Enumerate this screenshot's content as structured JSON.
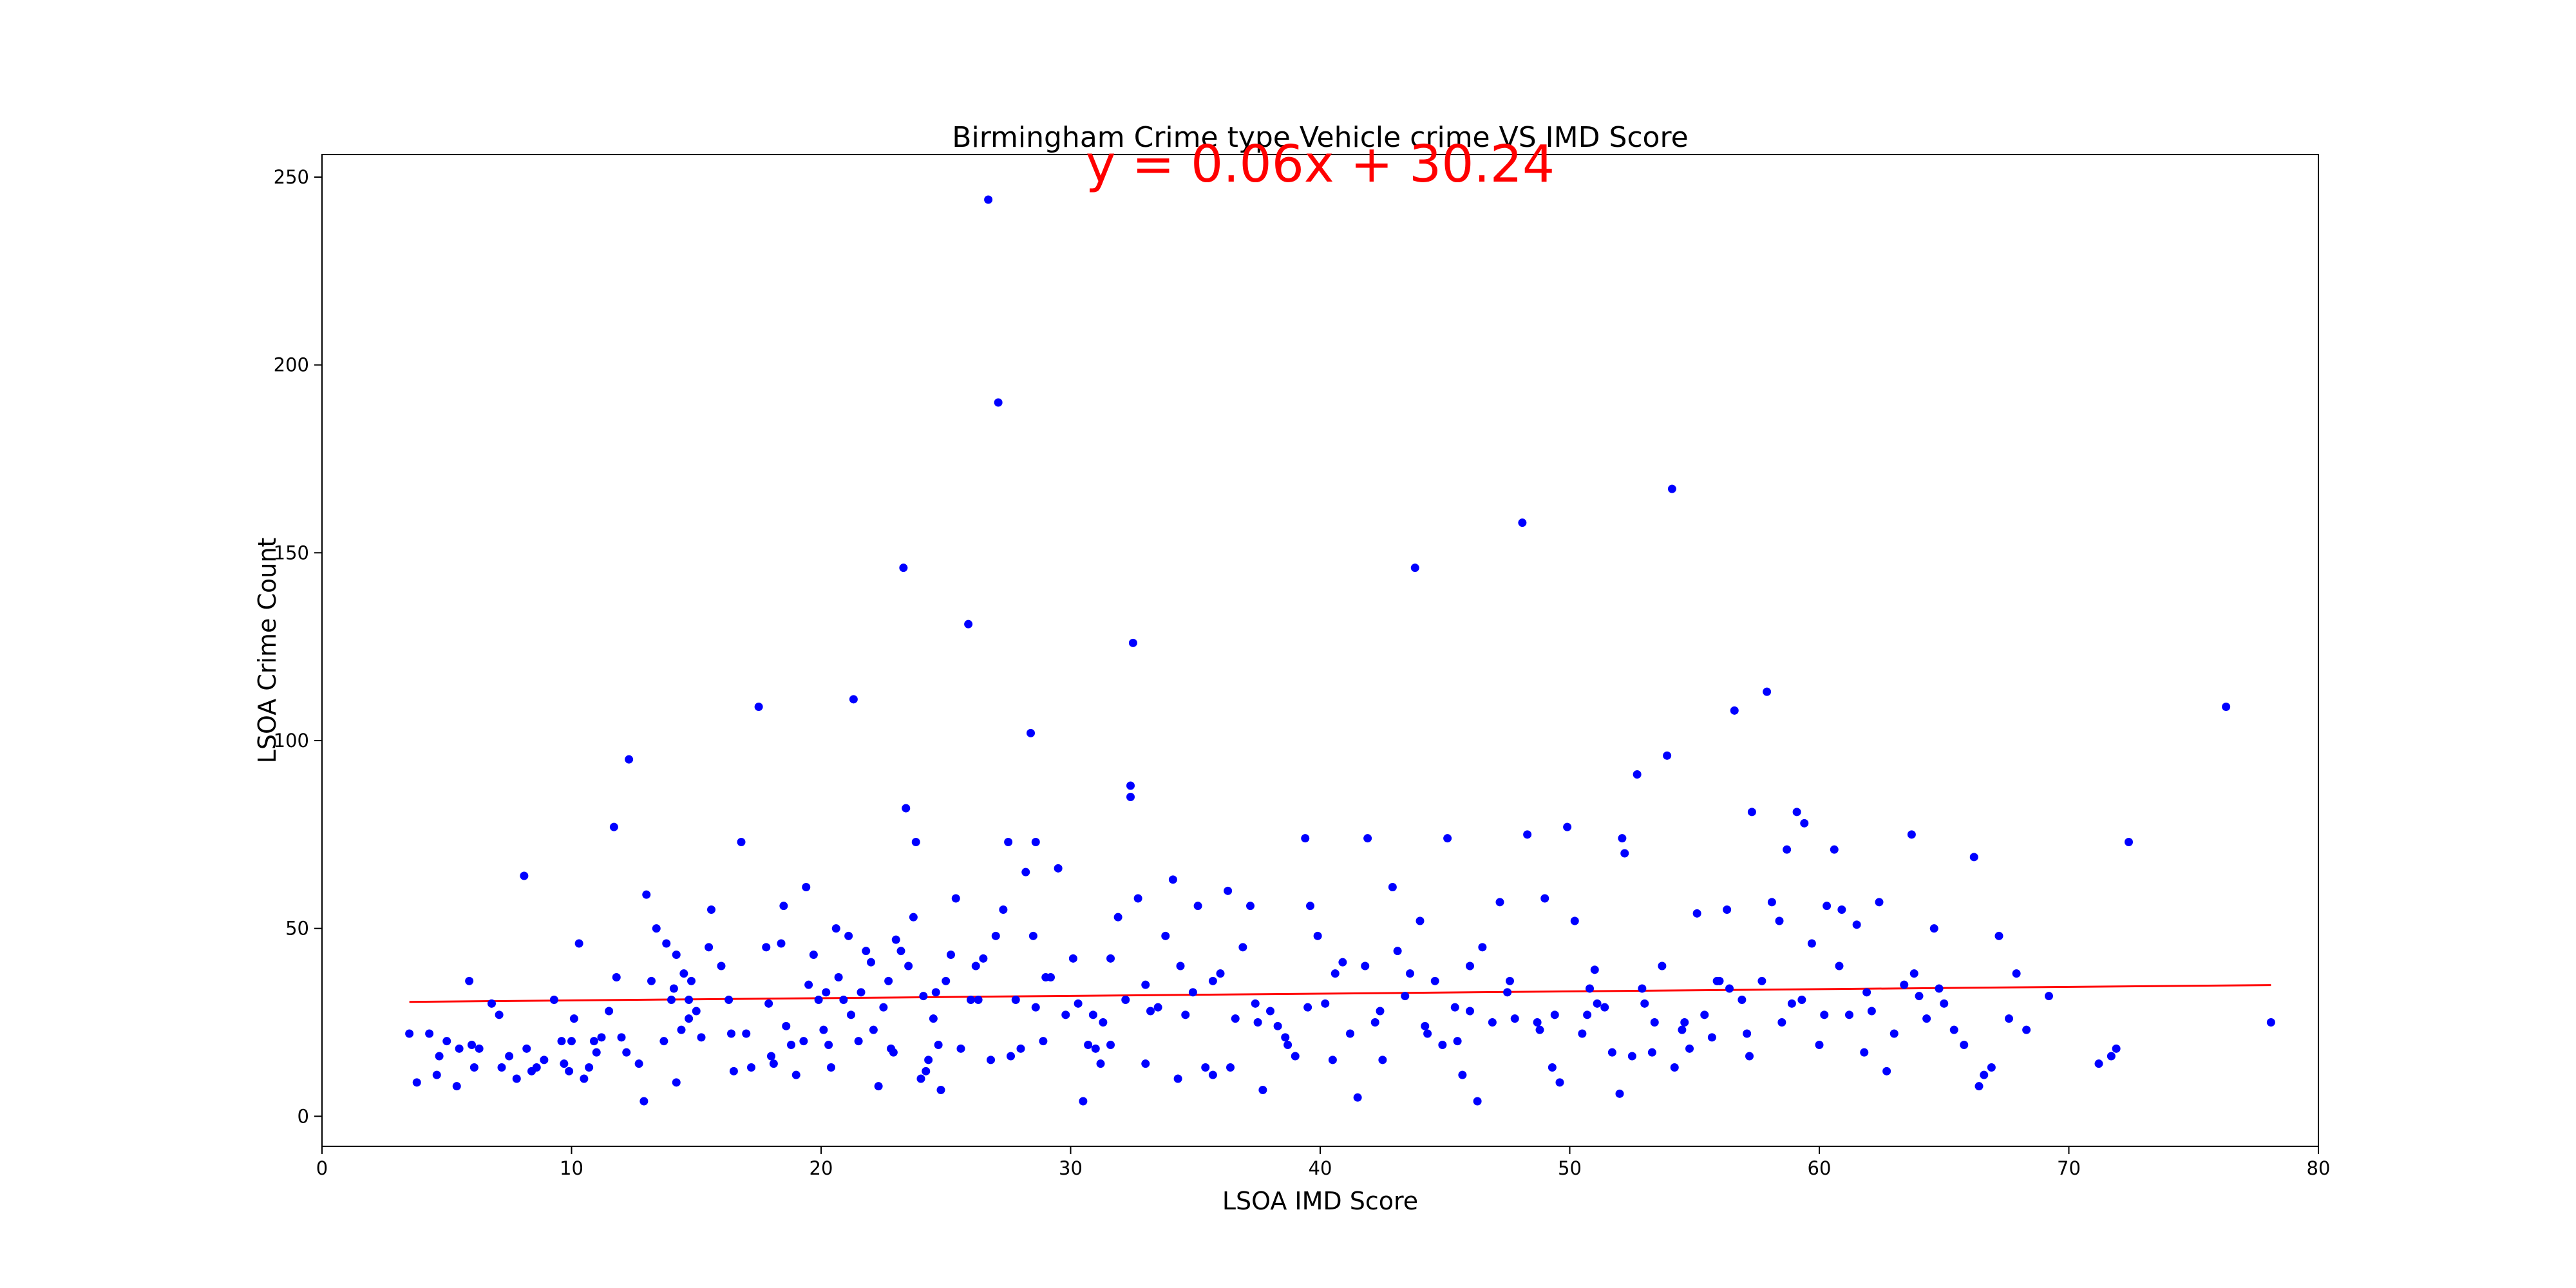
{
  "chart_data": {
    "type": "scatter",
    "title": "Birmingham Crime type Vehicle crime VS IMD Score",
    "xlabel": "LSOA IMD Score",
    "ylabel": "LSOA Crime Count",
    "xlim": [
      0,
      80
    ],
    "ylim": [
      -8,
      256
    ],
    "xticks": [
      0,
      10,
      20,
      30,
      40,
      50,
      60,
      70,
      80
    ],
    "yticks": [
      0,
      50,
      100,
      150,
      200,
      250
    ],
    "grid": false,
    "annotation": "y = 0.06x + 30.24",
    "colors": {
      "points": "#0000ff",
      "regression": "#ff0000",
      "annotation": "#ff0000"
    },
    "regression": {
      "slope": 0.06,
      "intercept": 30.24,
      "x_range": [
        3.5,
        78.1
      ]
    },
    "series": [
      {
        "values": [
          [
            3.5,
            22
          ],
          [
            3.8,
            9
          ],
          [
            4.3,
            22
          ],
          [
            4.6,
            11
          ],
          [
            4.7,
            16
          ],
          [
            5.0,
            20
          ],
          [
            5.4,
            8
          ],
          [
            5.5,
            18
          ],
          [
            5.9,
            36
          ],
          [
            6.0,
            19
          ],
          [
            6.1,
            13
          ],
          [
            6.3,
            18
          ],
          [
            7.1,
            27
          ],
          [
            7.2,
            13
          ],
          [
            7.5,
            16
          ],
          [
            7.8,
            10
          ],
          [
            8.1,
            64
          ],
          [
            8.2,
            18
          ],
          [
            8.4,
            12
          ],
          [
            8.9,
            15
          ],
          [
            9.3,
            31
          ],
          [
            9.6,
            20
          ],
          [
            9.7,
            14
          ],
          [
            9.9,
            12
          ],
          [
            10.0,
            20
          ],
          [
            10.1,
            26
          ],
          [
            10.3,
            46
          ],
          [
            10.5,
            10
          ],
          [
            10.7,
            13
          ],
          [
            10.9,
            20
          ],
          [
            11.2,
            21
          ],
          [
            11.5,
            28
          ],
          [
            11.7,
            77
          ],
          [
            11.8,
            37
          ],
          [
            12.0,
            21
          ],
          [
            12.2,
            17
          ],
          [
            12.3,
            95
          ],
          [
            12.7,
            14
          ],
          [
            12.9,
            4
          ],
          [
            13.0,
            59
          ],
          [
            13.2,
            36
          ],
          [
            13.4,
            50
          ],
          [
            13.7,
            20
          ],
          [
            13.8,
            46
          ],
          [
            14.0,
            31
          ],
          [
            14.1,
            34
          ],
          [
            14.2,
            43
          ],
          [
            14.2,
            9
          ],
          [
            14.4,
            23
          ],
          [
            14.5,
            38
          ],
          [
            14.7,
            31
          ],
          [
            14.8,
            36
          ],
          [
            15.0,
            28
          ],
          [
            15.2,
            21
          ],
          [
            15.5,
            45
          ],
          [
            15.6,
            55
          ],
          [
            16.0,
            40
          ],
          [
            16.3,
            31
          ],
          [
            16.5,
            12
          ],
          [
            16.8,
            73
          ],
          [
            17.0,
            22
          ],
          [
            17.2,
            13
          ],
          [
            17.5,
            109
          ],
          [
            17.8,
            45
          ],
          [
            17.9,
            30
          ],
          [
            18.1,
            14
          ],
          [
            18.4,
            46
          ],
          [
            18.5,
            56
          ],
          [
            18.6,
            24
          ],
          [
            18.8,
            19
          ],
          [
            19.0,
            11
          ],
          [
            19.3,
            20
          ],
          [
            19.4,
            61
          ],
          [
            19.5,
            35
          ],
          [
            19.7,
            43
          ],
          [
            19.9,
            31
          ],
          [
            20.1,
            23
          ],
          [
            20.2,
            33
          ],
          [
            20.4,
            13
          ],
          [
            20.6,
            50
          ],
          [
            20.7,
            37
          ],
          [
            20.9,
            31
          ],
          [
            21.1,
            48
          ],
          [
            21.2,
            27
          ],
          [
            21.3,
            111
          ],
          [
            21.5,
            20
          ],
          [
            21.6,
            33
          ],
          [
            21.8,
            44
          ],
          [
            22.0,
            41
          ],
          [
            22.1,
            23
          ],
          [
            22.3,
            8
          ],
          [
            22.5,
            29
          ],
          [
            22.7,
            36
          ],
          [
            22.9,
            17
          ],
          [
            23.0,
            47
          ],
          [
            23.2,
            44
          ],
          [
            23.3,
            146
          ],
          [
            23.4,
            82
          ],
          [
            23.5,
            40
          ],
          [
            23.7,
            53
          ],
          [
            23.8,
            73
          ],
          [
            24.0,
            10
          ],
          [
            24.1,
            32
          ],
          [
            24.3,
            15
          ],
          [
            24.5,
            26
          ],
          [
            24.7,
            19
          ],
          [
            24.8,
            7
          ],
          [
            25.0,
            36
          ],
          [
            25.2,
            43
          ],
          [
            25.4,
            58
          ],
          [
            25.6,
            18
          ],
          [
            25.9,
            131
          ],
          [
            26.0,
            31
          ],
          [
            26.2,
            40
          ],
          [
            26.5,
            42
          ],
          [
            26.7,
            244
          ],
          [
            26.8,
            15
          ],
          [
            27.0,
            48
          ],
          [
            27.1,
            190
          ],
          [
            27.3,
            55
          ],
          [
            27.5,
            73
          ],
          [
            27.8,
            31
          ],
          [
            28.0,
            18
          ],
          [
            28.2,
            65
          ],
          [
            28.4,
            102
          ],
          [
            28.5,
            48
          ],
          [
            28.6,
            73
          ],
          [
            28.9,
            20
          ],
          [
            29.2,
            37
          ],
          [
            29.5,
            66
          ],
          [
            29.8,
            27
          ],
          [
            30.1,
            42
          ],
          [
            30.3,
            30
          ],
          [
            30.5,
            4
          ],
          [
            30.7,
            19
          ],
          [
            31.0,
            18
          ],
          [
            31.3,
            25
          ],
          [
            31.6,
            42
          ],
          [
            31.9,
            53
          ],
          [
            32.2,
            31
          ],
          [
            32.4,
            88
          ],
          [
            32.4,
            85
          ],
          [
            32.5,
            126
          ],
          [
            32.7,
            58
          ],
          [
            33.0,
            35
          ],
          [
            33.2,
            28
          ],
          [
            33.5,
            29
          ],
          [
            33.8,
            48
          ],
          [
            34.1,
            63
          ],
          [
            34.3,
            10
          ],
          [
            34.6,
            27
          ],
          [
            34.9,
            33
          ],
          [
            35.1,
            56
          ],
          [
            35.4,
            13
          ],
          [
            35.7,
            11
          ],
          [
            36.0,
            38
          ],
          [
            36.3,
            60
          ],
          [
            36.6,
            26
          ],
          [
            36.9,
            45
          ],
          [
            37.2,
            56
          ],
          [
            37.5,
            25
          ],
          [
            37.7,
            7
          ],
          [
            38.0,
            28
          ],
          [
            38.3,
            24
          ],
          [
            38.7,
            19
          ],
          [
            39.0,
            16
          ],
          [
            39.4,
            74
          ],
          [
            39.6,
            56
          ],
          [
            39.9,
            48
          ],
          [
            40.2,
            30
          ],
          [
            40.5,
            15
          ],
          [
            40.9,
            41
          ],
          [
            41.2,
            22
          ],
          [
            41.5,
            5
          ],
          [
            41.8,
            40
          ],
          [
            41.9,
            74
          ],
          [
            42.2,
            25
          ],
          [
            42.5,
            15
          ],
          [
            42.9,
            61
          ],
          [
            43.1,
            44
          ],
          [
            43.4,
            32
          ],
          [
            43.8,
            146
          ],
          [
            44.0,
            52
          ],
          [
            44.3,
            22
          ],
          [
            44.6,
            36
          ],
          [
            44.9,
            19
          ],
          [
            45.1,
            74
          ],
          [
            45.4,
            29
          ],
          [
            45.7,
            11
          ],
          [
            46.0,
            28
          ],
          [
            46.3,
            4
          ],
          [
            46.5,
            45
          ],
          [
            46.9,
            25
          ],
          [
            47.2,
            57
          ],
          [
            47.5,
            33
          ],
          [
            47.8,
            26
          ],
          [
            48.1,
            158
          ],
          [
            48.3,
            75
          ],
          [
            48.7,
            25
          ],
          [
            49.0,
            58
          ],
          [
            49.3,
            13
          ],
          [
            49.6,
            9
          ],
          [
            49.9,
            77
          ],
          [
            50.2,
            52
          ],
          [
            50.5,
            22
          ],
          [
            50.8,
            34
          ],
          [
            51.1,
            30
          ],
          [
            51.4,
            29
          ],
          [
            51.7,
            17
          ],
          [
            52.0,
            6
          ],
          [
            52.1,
            74
          ],
          [
            52.2,
            70
          ],
          [
            52.5,
            16
          ],
          [
            52.7,
            91
          ],
          [
            53.0,
            30
          ],
          [
            53.3,
            17
          ],
          [
            53.7,
            40
          ],
          [
            53.9,
            96
          ],
          [
            54.1,
            167
          ],
          [
            54.2,
            13
          ],
          [
            54.5,
            23
          ],
          [
            54.8,
            18
          ],
          [
            55.1,
            54
          ],
          [
            55.4,
            27
          ],
          [
            55.7,
            21
          ],
          [
            56.0,
            36
          ],
          [
            56.3,
            55
          ],
          [
            56.6,
            108
          ],
          [
            56.9,
            31
          ],
          [
            57.2,
            16
          ],
          [
            57.3,
            81
          ],
          [
            57.7,
            36
          ],
          [
            57.9,
            113
          ],
          [
            58.1,
            57
          ],
          [
            58.4,
            52
          ],
          [
            58.7,
            71
          ],
          [
            58.9,
            30
          ],
          [
            59.1,
            81
          ],
          [
            59.4,
            78
          ],
          [
            59.7,
            46
          ],
          [
            60.0,
            19
          ],
          [
            60.3,
            56
          ],
          [
            60.6,
            71
          ],
          [
            60.9,
            55
          ],
          [
            61.2,
            27
          ],
          [
            61.5,
            51
          ],
          [
            61.8,
            17
          ],
          [
            62.1,
            28
          ],
          [
            62.4,
            57
          ],
          [
            62.7,
            12
          ],
          [
            63.0,
            22
          ],
          [
            63.4,
            35
          ],
          [
            63.7,
            75
          ],
          [
            64.0,
            32
          ],
          [
            64.3,
            26
          ],
          [
            64.6,
            50
          ],
          [
            65.0,
            30
          ],
          [
            65.4,
            23
          ],
          [
            65.8,
            19
          ],
          [
            66.2,
            69
          ],
          [
            66.4,
            8
          ],
          [
            66.6,
            11
          ],
          [
            66.9,
            13
          ],
          [
            67.2,
            48
          ],
          [
            67.6,
            26
          ],
          [
            67.9,
            38
          ],
          [
            68.3,
            23
          ],
          [
            69.2,
            32
          ],
          [
            71.2,
            14
          ],
          [
            71.7,
            16
          ],
          [
            71.9,
            18
          ],
          [
            72.4,
            73
          ],
          [
            76.3,
            109
          ],
          [
            78.1,
            25
          ],
          [
            24.2,
            12
          ],
          [
            26.3,
            31
          ],
          [
            29.0,
            37
          ],
          [
            30.9,
            27
          ],
          [
            33.0,
            14
          ],
          [
            35.7,
            36
          ],
          [
            37.4,
            30
          ],
          [
            40.6,
            38
          ],
          [
            43.6,
            38
          ],
          [
            45.5,
            20
          ],
          [
            47.6,
            36
          ],
          [
            49.4,
            27
          ],
          [
            51.0,
            39
          ],
          [
            52.9,
            34
          ],
          [
            54.6,
            25
          ],
          [
            56.4,
            34
          ],
          [
            58.5,
            25
          ],
          [
            60.2,
            27
          ],
          [
            61.9,
            33
          ],
          [
            63.8,
            38
          ],
          [
            22.8,
            18
          ],
          [
            18.0,
            16
          ],
          [
            14.7,
            26
          ],
          [
            11.0,
            17
          ],
          [
            8.6,
            13
          ],
          [
            6.8,
            30
          ],
          [
            20.3,
            19
          ],
          [
            27.6,
            16
          ],
          [
            31.2,
            14
          ],
          [
            34.4,
            40
          ],
          [
            38.6,
            21
          ],
          [
            42.4,
            28
          ],
          [
            46.0,
            40
          ],
          [
            50.7,
            27
          ],
          [
            53.4,
            25
          ],
          [
            57.1,
            22
          ],
          [
            60.8,
            40
          ],
          [
            64.8,
            34
          ],
          [
            24.6,
            33
          ],
          [
            28.6,
            29
          ],
          [
            36.4,
            13
          ],
          [
            44.2,
            24
          ],
          [
            48.8,
            23
          ],
          [
            55.9,
            36
          ],
          [
            59.3,
            31
          ],
          [
            39.5,
            29
          ],
          [
            31.6,
            19
          ],
          [
            16.4,
            22
          ]
        ]
      }
    ]
  }
}
